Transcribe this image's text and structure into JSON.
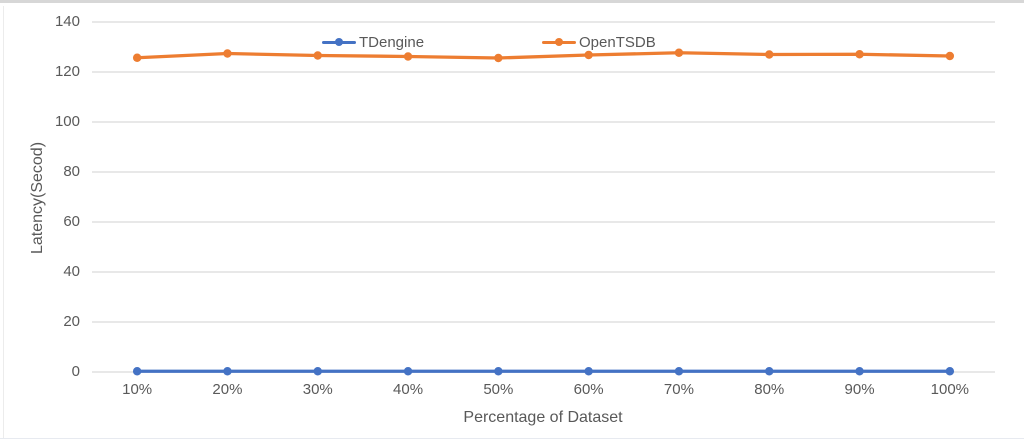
{
  "chart_data": {
    "type": "line",
    "title": "",
    "xlabel": "Percentage of Dataset",
    "ylabel": "Latency(Secod)",
    "categories": [
      "10%",
      "20%",
      "30%",
      "40%",
      "50%",
      "60%",
      "70%",
      "80%",
      "90%",
      "100%"
    ],
    "series": [
      {
        "name": "TDengine",
        "color": "#4472C4",
        "values": [
          0.3,
          0.3,
          0.3,
          0.3,
          0.3,
          0.3,
          0.3,
          0.3,
          0.3,
          0.3
        ]
      },
      {
        "name": "OpenTSDB",
        "color": "#ED7D31",
        "values": [
          125.7,
          127.4,
          126.6,
          126.2,
          125.6,
          126.8,
          127.7,
          127.0,
          127.1,
          126.4
        ]
      }
    ],
    "ylim": [
      0,
      140
    ],
    "yticks": [
      0,
      20,
      40,
      60,
      80,
      100,
      120,
      140
    ],
    "grid": true,
    "legend_position": "top-center"
  },
  "colors": {
    "gridline": "#d9d9d9",
    "tick_label": "#595959",
    "axis_title": "#595959",
    "series_blue": "#4472C4",
    "series_orange": "#ED7D31"
  }
}
